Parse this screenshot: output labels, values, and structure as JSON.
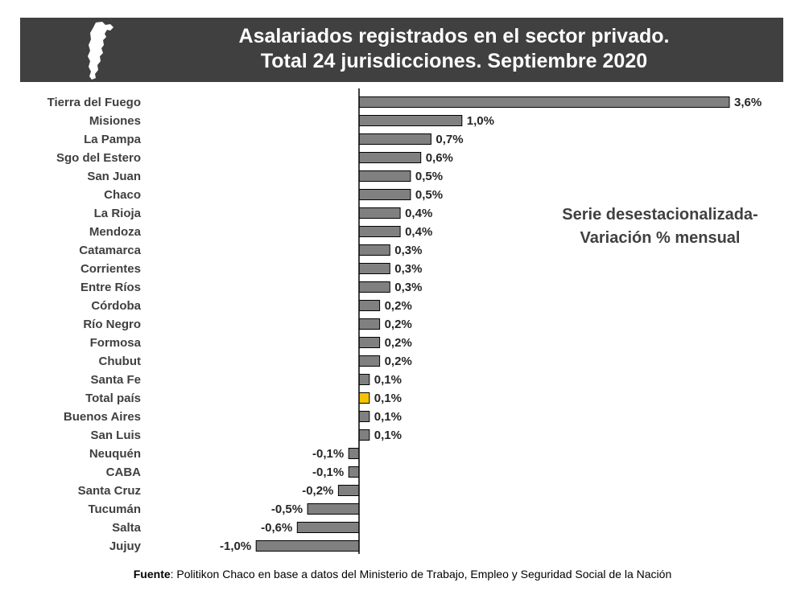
{
  "header": {
    "title_line1": "Asalariados registrados en el sector privado.",
    "title_line2": "Total 24 jurisdicciones. Septiembre 2020"
  },
  "note": {
    "line1": "Serie desestacionalizada-",
    "line2": "Variación % mensual"
  },
  "source": {
    "label": "Fuente",
    "text": ": Politikon Chaco en base a datos del Ministerio de Trabajo, Empleo y Seguridad Social de la Nación"
  },
  "colors": {
    "bar": "#808080",
    "highlight": "#F5C400",
    "bar_stroke": "#000000",
    "banner": "#404040"
  },
  "chart_data": {
    "type": "bar",
    "orientation": "horizontal",
    "title": "Asalariados registrados en el sector privado. Total 24 jurisdicciones. Septiembre 2020",
    "subtitle": "Serie desestacionalizada- Variación % mensual",
    "categories": [
      "Tierra del Fuego",
      "Misiones",
      "La Pampa",
      "Sgo del Estero",
      "San Juan",
      "Chaco",
      "La Rioja",
      "Mendoza",
      "Catamarca",
      "Corrientes",
      "Entre Ríos",
      "Córdoba",
      "Río Negro",
      "Formosa",
      "Chubut",
      "Santa Fe",
      "Total país",
      "Buenos Aires",
      "San Luis",
      "Neuquén",
      "CABA",
      "Santa Cruz",
      "Tucumán",
      "Salta",
      "Jujuy"
    ],
    "values": [
      3.6,
      1.0,
      0.7,
      0.6,
      0.5,
      0.5,
      0.4,
      0.4,
      0.3,
      0.3,
      0.3,
      0.2,
      0.2,
      0.2,
      0.2,
      0.1,
      0.1,
      0.1,
      0.1,
      -0.1,
      -0.1,
      -0.2,
      -0.5,
      -0.6,
      -1.0
    ],
    "labels": [
      "3,6%",
      "1,0%",
      "0,7%",
      "0,6%",
      "0,5%",
      "0,5%",
      "0,4%",
      "0,4%",
      "0,3%",
      "0,3%",
      "0,3%",
      "0,2%",
      "0,2%",
      "0,2%",
      "0,2%",
      "0,1%",
      "0,1%",
      "0,1%",
      "0,1%",
      "-0,1%",
      "-0,1%",
      "-0,2%",
      "-0,5%",
      "-0,6%",
      "-1,0%"
    ],
    "highlight": "Total país",
    "xlim": [
      -1.0,
      3.6
    ],
    "xlabel": "",
    "ylabel": ""
  }
}
